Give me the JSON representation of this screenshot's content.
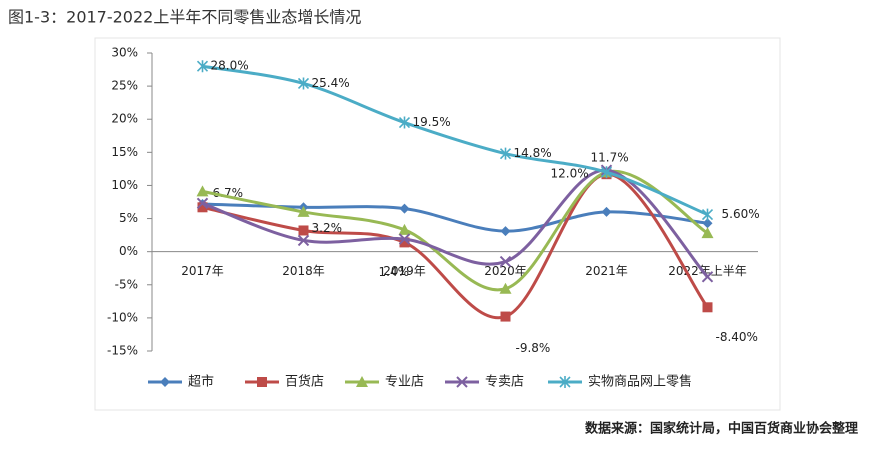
{
  "chart_data": {
    "type": "line",
    "title": "图1-3：2017-2022上半年不同零售业态增长情况",
    "source": "数据来源：国家统计局，中国百货商业协会整理",
    "categories": [
      "2017年",
      "2018年",
      "2019年",
      "2020年",
      "2021年",
      "2022年上半年"
    ],
    "ylim": [
      -15,
      30
    ],
    "yticks": [
      {
        "value": -15,
        "label": "-15%"
      },
      {
        "value": -10,
        "label": "-10%"
      },
      {
        "value": -5,
        "label": "-5%"
      },
      {
        "value": 0,
        "label": "0%"
      },
      {
        "value": 5,
        "label": "5%"
      },
      {
        "value": 10,
        "label": "10%"
      },
      {
        "value": 15,
        "label": "15%"
      },
      {
        "value": 20,
        "label": "20%"
      },
      {
        "value": 25,
        "label": "25%"
      },
      {
        "value": 30,
        "label": "30%"
      }
    ],
    "legend": "bottom",
    "series": [
      {
        "name": "超市",
        "color": "#4a7ebb",
        "marker": "diamond",
        "values": [
          7.2,
          6.7,
          6.5,
          3.1,
          6.0,
          4.3
        ]
      },
      {
        "name": "百货店",
        "color": "#be4b48",
        "marker": "square",
        "values": [
          6.7,
          3.2,
          1.4,
          -9.8,
          11.7,
          -8.4
        ],
        "value_labels": [
          "6.7%",
          "3.2%",
          "1.4%",
          "-9.8%",
          "11.7%",
          "-8.40%"
        ]
      },
      {
        "name": "专业店",
        "color": "#98b954",
        "marker": "triangle",
        "values": [
          9.1,
          6.0,
          3.3,
          -5.6,
          12.0,
          2.8
        ]
      },
      {
        "name": "专卖店",
        "color": "#7d60a0",
        "marker": "x",
        "values": [
          7.3,
          1.7,
          1.9,
          -1.5,
          12.3,
          -3.8
        ]
      },
      {
        "name": "实物商品网上零售",
        "color": "#4bacc6",
        "marker": "star",
        "values": [
          28.0,
          25.4,
          19.5,
          14.8,
          12.0,
          5.6
        ],
        "value_labels": [
          "28.0%",
          "25.4%",
          "19.5%",
          "14.8%",
          "12.0%",
          "5.60%"
        ]
      }
    ]
  }
}
